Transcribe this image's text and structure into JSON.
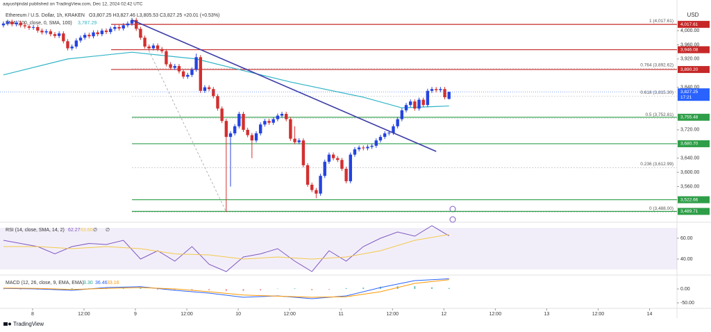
{
  "header": {
    "publisher": "aayushjindal published on TradingView.com, Dec 12, 2024 02:42 UTC",
    "symbol": "Ethereum / U.S. Dollar, 1h, KRAKEN",
    "ohlc": "O3,807.25 H3,827.46 L3,805.53 C3,827.25 +20.01 (+0.53%)",
    "ema_label": "EMA (100, close, 0, SMA, 100)",
    "ema_value": "3,787.29",
    "currency": "USD",
    "countdown": "17:21"
  },
  "footer": "TradingView",
  "chart_data": [
    {
      "type": "candlestick",
      "up_color": "#2443e0",
      "down_color": "#d32f2f",
      "xlim": [
        -0.8,
        157.2
      ],
      "ylim": [
        3463,
        4057
      ],
      "xticks": [
        {
          "value": 6.8,
          "label": "8"
        },
        {
          "value": 18.8,
          "label": "12:00"
        },
        {
          "value": 30.8,
          "label": "9"
        },
        {
          "value": 42.8,
          "label": "12:00"
        },
        {
          "value": 54.8,
          "label": "10"
        },
        {
          "value": 66.8,
          "label": "12:00"
        },
        {
          "value": 78.8,
          "label": "11"
        },
        {
          "value": 90.8,
          "label": "12:00"
        },
        {
          "value": 102.8,
          "label": "12"
        },
        {
          "value": 114.8,
          "label": "12:00"
        },
        {
          "value": 126.8,
          "label": "13"
        },
        {
          "value": 138.8,
          "label": "12:00"
        },
        {
          "value": 150.8,
          "label": "14"
        }
      ],
      "yticks": [
        {
          "value": 4000,
          "label": "4,000.00"
        },
        {
          "value": 3960,
          "label": "3,960.00"
        },
        {
          "value": 3920,
          "label": "3,920.00"
        },
        {
          "value": 3840,
          "label": "3,840.00"
        },
        {
          "value": 3720,
          "label": "3,720.00"
        },
        {
          "value": 3640,
          "label": "3,640.00"
        },
        {
          "value": 3600,
          "label": "3,600.00"
        },
        {
          "value": 3560,
          "label": "3,560.00"
        }
      ],
      "candles": [
        [
          4015,
          4026,
          4009,
          4020
        ],
        [
          4020,
          4031,
          4014,
          4025
        ],
        [
          4025,
          4031,
          4012,
          4018
        ],
        [
          4018,
          4028,
          4012,
          4022
        ],
        [
          4022,
          4028,
          4009,
          4015
        ],
        [
          4015,
          4021,
          4006,
          4012
        ],
        [
          4012,
          4018,
          4002,
          4008
        ],
        [
          4008,
          4016,
          4002,
          4010
        ],
        [
          4010,
          4016,
          3994,
          4000
        ],
        [
          4000,
          4006,
          3989,
          3995
        ],
        [
          3995,
          4004,
          3989,
          3998
        ],
        [
          3998,
          4004,
          3984,
          3990
        ],
        [
          3990,
          3996,
          3979,
          3985
        ],
        [
          3985,
          3998,
          3979,
          3992
        ],
        [
          3992,
          3998,
          3964,
          3970
        ],
        [
          3970,
          3976,
          3944,
          3950
        ],
        [
          3950,
          3961,
          3944,
          3955
        ],
        [
          3955,
          3978,
          3949,
          3972
        ],
        [
          3972,
          3986,
          3966,
          3980
        ],
        [
          3980,
          3994,
          3974,
          3988
        ],
        [
          3988,
          3994,
          3978,
          3984
        ],
        [
          3984,
          4001,
          3978,
          3995
        ],
        [
          3995,
          4001,
          3984,
          3990
        ],
        [
          3990,
          4006,
          3984,
          4000
        ],
        [
          4000,
          4006,
          3990,
          3996
        ],
        [
          3996,
          4011,
          3990,
          4005
        ],
        [
          4005,
          4016,
          3999,
          4010
        ],
        [
          4010,
          4016,
          4000,
          4006
        ],
        [
          4006,
          4021,
          4000,
          4015
        ],
        [
          4015,
          4026,
          4009,
          4020
        ],
        [
          4020,
          4036,
          4014,
          4030
        ],
        [
          4030,
          4036,
          3999,
          4005
        ],
        [
          4005,
          4011,
          3974,
          3980
        ],
        [
          3980,
          3986,
          3949,
          3955
        ],
        [
          3955,
          3961,
          3944,
          3950
        ],
        [
          3950,
          3964,
          3944,
          3958
        ],
        [
          3958,
          3964,
          3942,
          3948
        ],
        [
          3948,
          3954,
          3936,
          3942
        ],
        [
          3942,
          3948,
          3899,
          3905
        ],
        [
          3905,
          3911,
          3889,
          3895
        ],
        [
          3895,
          3906,
          3889,
          3900
        ],
        [
          3900,
          3906,
          3879,
          3885
        ],
        [
          3885,
          3891,
          3864,
          3870
        ],
        [
          3870,
          3881,
          3864,
          3875
        ],
        [
          3875,
          3896,
          3869,
          3890
        ],
        [
          3890,
          3935,
          3884,
          3925
        ],
        [
          3925,
          3931,
          3824,
          3830
        ],
        [
          3830,
          3846,
          3824,
          3840
        ],
        [
          3840,
          3846,
          3829,
          3835
        ],
        [
          3835,
          3841,
          3809,
          3815
        ],
        [
          3815,
          3821,
          3774,
          3780
        ],
        [
          3780,
          3786,
          3739,
          3745
        ],
        [
          3745,
          3751,
          3488,
          3700
        ],
        [
          3700,
          3716,
          3560,
          3710
        ],
        [
          3710,
          3736,
          3704,
          3730
        ],
        [
          3730,
          3771,
          3724,
          3765
        ],
        [
          3765,
          3771,
          3714,
          3720
        ],
        [
          3720,
          3726,
          3699,
          3705
        ],
        [
          3705,
          3711,
          3640,
          3690
        ],
        [
          3690,
          3716,
          3684,
          3710
        ],
        [
          3710,
          3741,
          3704,
          3735
        ],
        [
          3735,
          3751,
          3729,
          3745
        ],
        [
          3745,
          3751,
          3734,
          3740
        ],
        [
          3740,
          3756,
          3734,
          3750
        ],
        [
          3750,
          3766,
          3744,
          3760
        ],
        [
          3760,
          3771,
          3754,
          3765
        ],
        [
          3765,
          3771,
          3744,
          3750
        ],
        [
          3750,
          3756,
          3689,
          3695
        ],
        [
          3695,
          3730,
          3679,
          3685
        ],
        [
          3685,
          3696,
          3679,
          3690
        ],
        [
          3690,
          3696,
          3614,
          3620
        ],
        [
          3620,
          3626,
          3559,
          3565
        ],
        [
          3565,
          3571,
          3544,
          3550
        ],
        [
          3550,
          3556,
          3527,
          3540
        ],
        [
          3540,
          3596,
          3534,
          3590
        ],
        [
          3590,
          3636,
          3584,
          3630
        ],
        [
          3630,
          3656,
          3624,
          3650
        ],
        [
          3650,
          3656,
          3634,
          3640
        ],
        [
          3640,
          3646,
          3629,
          3635
        ],
        [
          3635,
          3641,
          3604,
          3610
        ],
        [
          3610,
          3616,
          3569,
          3575
        ],
        [
          3575,
          3656,
          3569,
          3650
        ],
        [
          3650,
          3671,
          3644,
          3665
        ],
        [
          3665,
          3676,
          3659,
          3670
        ],
        [
          3670,
          3676,
          3662,
          3668
        ],
        [
          3668,
          3678,
          3662,
          3672
        ],
        [
          3672,
          3681,
          3666,
          3675
        ],
        [
          3675,
          3696,
          3669,
          3690
        ],
        [
          3690,
          3706,
          3684,
          3700
        ],
        [
          3700,
          3716,
          3694,
          3710
        ],
        [
          3710,
          3718,
          3704,
          3712
        ],
        [
          3712,
          3736,
          3706,
          3730
        ],
        [
          3730,
          3756,
          3724,
          3750
        ],
        [
          3750,
          3781,
          3744,
          3775
        ],
        [
          3775,
          3796,
          3769,
          3790
        ],
        [
          3790,
          3806,
          3784,
          3800
        ],
        [
          3800,
          3806,
          3774,
          3780
        ],
        [
          3780,
          3811,
          3774,
          3805
        ],
        [
          3805,
          3811,
          3784,
          3790
        ],
        [
          3790,
          3836,
          3784,
          3830
        ],
        [
          3830,
          3841,
          3824,
          3835
        ],
        [
          3835,
          3841,
          3826,
          3832
        ],
        [
          3832,
          3841,
          3826,
          3835
        ],
        [
          3835,
          3841,
          3806,
          3812
        ],
        [
          3807.25,
          3827.46,
          3805.53,
          3827.25
        ]
      ],
      "ema": {
        "color": "#2fb4c6",
        "x": [
          0,
          15,
          30,
          45,
          55,
          67,
          84,
          93,
          104
        ],
        "values": [
          3875,
          3920,
          3939,
          3920,
          3890,
          3855,
          3812,
          3782,
          3787.29
        ]
      },
      "trendline": {
        "color": "#3b3ba6",
        "x": [
          30,
          101
        ],
        "values": [
          4030,
          3659
        ]
      },
      "fib_line": {
        "color": "#9e9e9e",
        "x": [
          31,
          52
        ],
        "values": [
          4017.61,
          3488
        ]
      },
      "levels": [
        {
          "value": 4017.61,
          "label": "4,017.61",
          "color": "#c62828"
        },
        {
          "value": 3946.08,
          "label": "3,946.08",
          "color": "#c62828"
        },
        {
          "value": 3890.2,
          "label": "3,890.20",
          "color": "#c62828"
        },
        {
          "value": 3755.48,
          "label": "3,755.48",
          "color": "#2e9e48"
        },
        {
          "value": 3680.7,
          "label": "3,680.70",
          "color": "#2e9e48"
        },
        {
          "value": 3522.66,
          "label": "3,522.66",
          "color": "#2e9e48"
        },
        {
          "value": 3489.71,
          "label": "3,489.71",
          "color": "#2e9e48"
        }
      ],
      "fib_levels": [
        {
          "value": 4017.61,
          "label": "1 (4,017.61)"
        },
        {
          "value": 3892.62,
          "label": "0.764 (3,892.62)"
        },
        {
          "value": 3815.3,
          "label": "0.618 (3,815.30)"
        },
        {
          "value": 3752.81,
          "label": "0.5 (3,752.81)"
        },
        {
          "value": 3612.99,
          "label": "0.236 (3,612.99)"
        },
        {
          "value": 3488,
          "label": "0 (3,488.00)"
        }
      ],
      "current": {
        "value": 3827.25,
        "label": "3,827.25",
        "color": "#2962ff"
      }
    },
    {
      "type": "line",
      "title": "RSI (14, close, SMA, 14, 2)",
      "readout": [
        "62.27",
        "63.60",
        "∅",
        "∅"
      ],
      "ylim": [
        25,
        75
      ],
      "yticks": [
        {
          "value": 60,
          "label": "60.00"
        },
        {
          "value": 40,
          "label": "40.00"
        }
      ],
      "band": [
        30,
        70
      ],
      "series": [
        {
          "color": "#7e57c2",
          "x": [
            0,
            4,
            8,
            12,
            16,
            20,
            24,
            28,
            32,
            36,
            40,
            44,
            48,
            52,
            56,
            60,
            64,
            68,
            72,
            76,
            80,
            84,
            88,
            92,
            96,
            100,
            104
          ],
          "values": [
            58,
            55,
            52,
            45,
            52,
            55,
            54,
            58,
            40,
            48,
            38,
            52,
            35,
            28,
            42,
            45,
            50,
            38,
            28,
            48,
            38,
            52,
            60,
            66,
            62,
            72,
            62.27
          ]
        },
        {
          "color": "#f2c94c",
          "x": [
            0,
            8,
            16,
            24,
            32,
            40,
            48,
            56,
            64,
            72,
            80,
            88,
            96,
            104
          ],
          "values": [
            52,
            52,
            50,
            52,
            50,
            45,
            44,
            40,
            42,
            40,
            42,
            48,
            58,
            63.6
          ]
        }
      ]
    },
    {
      "type": "macd",
      "title": "MACD (12, 26, close, 9, EMA, EMA)",
      "readout": [
        "3.30",
        "36.46",
        "33.16"
      ],
      "ylim": [
        -85,
        45
      ],
      "yticks": [
        {
          "value": 0,
          "label": "0.00"
        },
        {
          "value": -50,
          "label": "-50.00"
        }
      ],
      "histogram": {
        "up_color": "#6cc4bb",
        "down_color": "#f1a3a3",
        "x": [
          0,
          4,
          8,
          12,
          16,
          20,
          24,
          28,
          32,
          36,
          40,
          44,
          48,
          52,
          56,
          60,
          64,
          68,
          72,
          76,
          80,
          84,
          88,
          92,
          96,
          100,
          104
        ],
        "values": [
          -1,
          -2,
          -3,
          -2,
          3,
          3,
          3,
          2,
          3,
          -3,
          -5,
          -5,
          -5,
          -8,
          -8,
          -6,
          1,
          2,
          -5,
          -3,
          3,
          5,
          8,
          10,
          10,
          6,
          3.3
        ]
      },
      "series": [
        {
          "color": "#2962ff",
          "x": [
            0,
            8,
            16,
            24,
            32,
            40,
            48,
            56,
            64,
            72,
            80,
            88,
            96,
            104
          ],
          "values": [
            2,
            0,
            -5,
            5,
            8,
            -5,
            -15,
            -30,
            -25,
            -35,
            -25,
            5,
            30,
            36.46
          ]
        },
        {
          "color": "#ff9800",
          "x": [
            0,
            8,
            16,
            24,
            32,
            40,
            48,
            56,
            64,
            72,
            80,
            88,
            96,
            104
          ],
          "values": [
            3,
            2,
            -2,
            2,
            5,
            0,
            -10,
            -22,
            -26,
            -30,
            -28,
            -10,
            20,
            33.16
          ]
        }
      ]
    }
  ]
}
